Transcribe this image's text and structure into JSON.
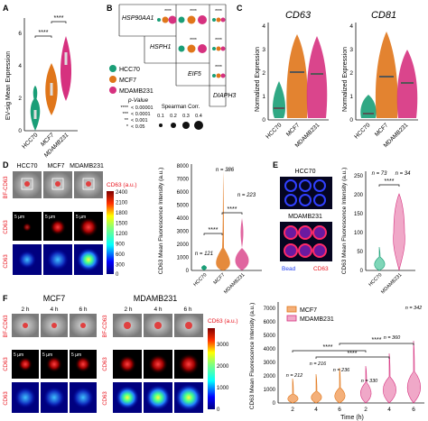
{
  "panels": {
    "A": "A",
    "B": "B",
    "C": "C",
    "D": "D",
    "E": "E",
    "F": "F"
  },
  "colors": {
    "hcc70": "#1a9e77",
    "mcf7": "#e0761a",
    "mdamb231": "#d6317f",
    "bead": "#1e3cf0",
    "red": "#e8141e"
  },
  "sig": {
    "four": "****"
  },
  "panelA": {
    "ylabel": "EV-sig Mean Expression",
    "yticks": [
      "0",
      "2",
      "4",
      "6"
    ],
    "cats": [
      "HCC70",
      "MCF7",
      "MDAMB231"
    ]
  },
  "panelB": {
    "genes": [
      "HSP90AA1",
      "HSPH1",
      "EIF5",
      "DIAPH3"
    ],
    "legend": [
      "HCC70",
      "MCF7",
      "MDAMB231"
    ],
    "pvalue_title": "p-Value",
    "pvalues": [
      {
        "stars": "****",
        "text": "< 0.00001"
      },
      {
        "stars": "***",
        "text": "< 0.0001"
      },
      {
        "stars": "**",
        "text": "< 0.001"
      },
      {
        "stars": "*",
        "text": "< 0.05"
      }
    ],
    "spearman_title": "Spearman Corr.",
    "spearman_values": [
      "0.1",
      "0.2",
      "0.3",
      "0.4"
    ]
  },
  "panelC": {
    "titles": [
      "CD63",
      "CD81"
    ],
    "ylabel": "Normalized Expression",
    "yticks": [
      "0",
      "1",
      "2",
      "3",
      "4"
    ],
    "cats": [
      "HCC70",
      "MCF7",
      "MDAMB231"
    ]
  },
  "panelD": {
    "col_titles": [
      "HCC70",
      "MCF7",
      "MDAMB231"
    ],
    "row_labels": [
      "BF-CD63",
      "CD63",
      "CD63"
    ],
    "scale": "5 µm",
    "colorbar_title": "CD63 (a.u.)",
    "colorbar_ticks": [
      "2400",
      "2100",
      "1800",
      "1500",
      "1200",
      "900",
      "600",
      "300",
      "0"
    ],
    "ylabel": "CD63 Mean Fluorescence Intensity (a.u.)",
    "yticks": [
      "0",
      "1000",
      "2000",
      "3000",
      "4000",
      "5000",
      "6000",
      "7000",
      "8000"
    ],
    "cats": [
      "HCC70",
      "MCF7",
      "MDAMB231"
    ],
    "n": [
      "n = 121",
      "n = 386",
      "n = 223"
    ]
  },
  "panelE": {
    "titles": [
      "HCC70",
      "MDAMB231"
    ],
    "bead": "Bead",
    "cd63": "CD63",
    "ylabel": "CD63 Mean Fluorescence Intensity (a.u.)",
    "yticks": [
      "0",
      "50",
      "100",
      "150",
      "200",
      "250"
    ],
    "cats": [
      "HCC70",
      "MDAMB231"
    ],
    "n": [
      "n = 73",
      "n = 34"
    ]
  },
  "panelF": {
    "groups": [
      "MCF7",
      "MDAMB231"
    ],
    "times": [
      "2 h",
      "4 h",
      "6 h"
    ],
    "row_labels": [
      "BF-CD63",
      "CD63",
      "CD63"
    ],
    "scale": "5 µm",
    "colorbar_title": "CD63 (a.u.)",
    "colorbar_ticks": [
      "3000",
      "2000",
      "1000",
      "0"
    ],
    "ylabel": "CD63 Mean Fluorescence Intensity (a.u.)",
    "yticks": [
      "0",
      "1000",
      "2000",
      "3000",
      "4000",
      "5000",
      "6000",
      "7000"
    ],
    "legend": [
      "MCF7",
      "MDAMB231"
    ],
    "xlabel": "Time (h)",
    "xticks": [
      "2",
      "4",
      "6",
      "2",
      "4",
      "6"
    ],
    "n": [
      "n = 212",
      "n = 216",
      "n = 236",
      "n = 330",
      "n = 360",
      "n = 342"
    ]
  }
}
